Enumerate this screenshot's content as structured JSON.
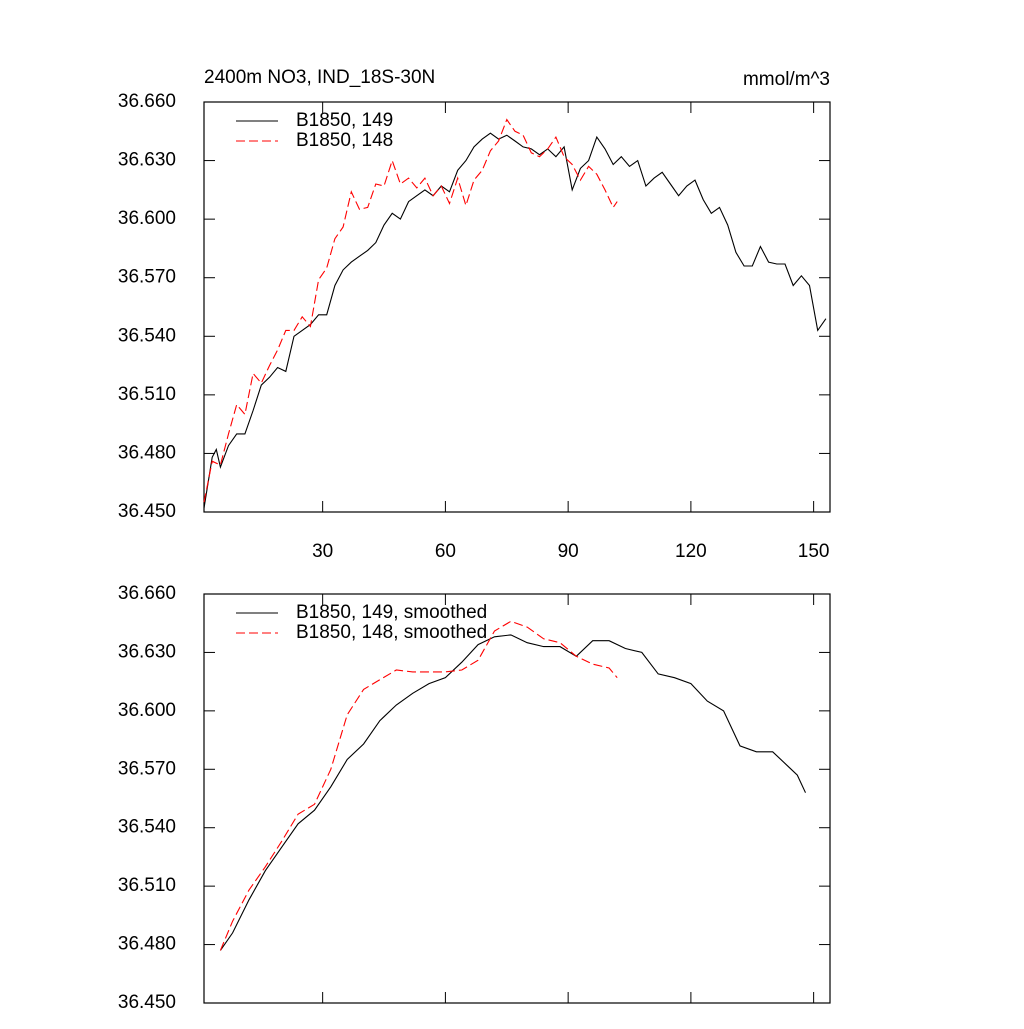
{
  "chart_data": [
    {
      "type": "line",
      "title": "2400m NO3, IND_18S-30N",
      "units": "mmol/m^3",
      "xlim": [
        1,
        154
      ],
      "xticks": [
        30,
        60,
        90,
        120,
        150
      ],
      "ylim": [
        36.45,
        36.66
      ],
      "yticks": [
        {
          "value": 36.45,
          "label": "36.450"
        },
        {
          "value": 36.48,
          "label": "36.480"
        },
        {
          "value": 36.51,
          "label": "36.510"
        },
        {
          "value": 36.54,
          "label": "36.540"
        },
        {
          "value": 36.57,
          "label": "36.570"
        },
        {
          "value": 36.6,
          "label": "36.600"
        },
        {
          "value": 36.63,
          "label": "36.630"
        },
        {
          "value": 36.66,
          "label": "36.660"
        }
      ],
      "series": [
        {
          "name": "B1850, 149",
          "color": "#000000",
          "dash": false,
          "x": [
            1,
            3,
            4,
            5,
            7,
            9,
            11,
            13,
            15,
            17,
            19,
            21,
            23,
            25,
            27,
            29,
            31,
            33,
            35,
            37,
            39,
            41,
            43,
            45,
            47,
            49,
            51,
            53,
            55,
            57,
            59,
            61,
            63,
            65,
            67,
            69,
            71,
            73,
            75,
            77,
            79,
            81,
            83,
            85,
            87,
            89,
            91,
            93,
            95,
            97,
            99,
            101,
            103,
            105,
            107,
            109,
            111,
            113,
            115,
            117,
            119,
            121,
            123,
            125,
            127,
            129,
            131,
            133,
            135,
            137,
            139,
            141,
            143,
            145,
            147,
            149,
            151,
            153
          ],
          "values": [
            36.452,
            36.478,
            36.482,
            36.473,
            36.484,
            36.49,
            36.49,
            36.502,
            36.515,
            36.519,
            36.524,
            36.522,
            36.54,
            36.543,
            36.546,
            36.551,
            36.551,
            36.566,
            36.574,
            36.578,
            36.581,
            36.584,
            36.588,
            36.597,
            36.603,
            36.6,
            36.609,
            36.612,
            36.615,
            36.612,
            36.617,
            36.614,
            36.625,
            36.63,
            36.637,
            36.641,
            36.644,
            36.641,
            36.643,
            36.64,
            36.637,
            36.636,
            36.633,
            36.636,
            36.632,
            36.637,
            36.615,
            36.626,
            36.63,
            36.642,
            36.636,
            36.628,
            36.632,
            36.627,
            36.63,
            36.617,
            36.621,
            36.624,
            36.618,
            36.612,
            36.617,
            36.62,
            36.61,
            36.603,
            36.606,
            36.597,
            36.583,
            36.576,
            36.576,
            36.586,
            36.578,
            36.577,
            36.577,
            36.566,
            36.571,
            36.566,
            36.543,
            36.549
          ]
        },
        {
          "name": "B1850, 148",
          "color": "#ff0000",
          "dash": true,
          "x": [
            1,
            3,
            5,
            7,
            9,
            11,
            13,
            15,
            17,
            19,
            21,
            23,
            25,
            27,
            29,
            31,
            33,
            35,
            37,
            39,
            41,
            43,
            45,
            47,
            49,
            51,
            53,
            55,
            57,
            59,
            61,
            63,
            65,
            67,
            69,
            71,
            73,
            75,
            77,
            79,
            81,
            83,
            85,
            87,
            89,
            91,
            93,
            95,
            97,
            99,
            101,
            102
          ],
          "values": [
            36.455,
            36.476,
            36.474,
            36.49,
            36.505,
            36.5,
            36.521,
            36.516,
            36.525,
            36.533,
            36.543,
            36.543,
            36.55,
            36.545,
            36.569,
            36.575,
            36.59,
            36.596,
            36.614,
            36.605,
            36.606,
            36.618,
            36.617,
            36.63,
            36.618,
            36.621,
            36.616,
            36.621,
            36.612,
            36.617,
            36.608,
            36.621,
            36.607,
            36.62,
            36.625,
            36.635,
            36.64,
            36.651,
            36.645,
            36.643,
            36.634,
            36.632,
            36.636,
            36.642,
            36.632,
            36.628,
            36.62,
            36.627,
            36.623,
            36.615,
            36.606,
            36.609
          ]
        }
      ]
    },
    {
      "type": "line",
      "xtick_labels": false,
      "xlim": [
        1,
        154
      ],
      "xticks": [
        30,
        60,
        90,
        120,
        150
      ],
      "ylim": [
        36.45,
        36.66
      ],
      "yticks": [
        {
          "value": 36.45,
          "label": "36.450"
        },
        {
          "value": 36.48,
          "label": "36.480"
        },
        {
          "value": 36.51,
          "label": "36.510"
        },
        {
          "value": 36.54,
          "label": "36.540"
        },
        {
          "value": 36.57,
          "label": "36.570"
        },
        {
          "value": 36.6,
          "label": "36.600"
        },
        {
          "value": 36.63,
          "label": "36.630"
        },
        {
          "value": 36.66,
          "label": "36.660"
        }
      ],
      "series": [
        {
          "name": "B1850, 149, smoothed",
          "color": "#000000",
          "dash": false,
          "x": [
            5,
            8,
            12,
            16,
            20,
            24,
            28,
            32,
            36,
            40,
            44,
            48,
            52,
            56,
            60,
            64,
            68,
            72,
            76,
            80,
            84,
            88,
            92,
            96,
            100,
            104,
            108,
            112,
            116,
            120,
            124,
            128,
            132,
            136,
            140,
            144,
            146,
            148
          ],
          "values": [
            36.477,
            36.486,
            36.503,
            36.518,
            36.53,
            36.542,
            36.549,
            36.561,
            36.575,
            36.583,
            36.595,
            36.603,
            36.609,
            36.614,
            36.617,
            36.625,
            36.634,
            36.638,
            36.639,
            36.635,
            36.633,
            36.633,
            36.628,
            36.636,
            36.636,
            36.632,
            36.63,
            36.619,
            36.617,
            36.614,
            36.605,
            36.6,
            36.582,
            36.579,
            36.579,
            36.571,
            36.567,
            36.558
          ]
        },
        {
          "name": "B1850, 148, smoothed",
          "color": "#ff0000",
          "dash": true,
          "x": [
            5,
            8,
            12,
            16,
            20,
            24,
            28,
            32,
            36,
            40,
            44,
            48,
            52,
            56,
            60,
            64,
            68,
            72,
            76,
            80,
            84,
            88,
            92,
            96,
            100,
            102
          ],
          "values": [
            36.477,
            36.492,
            36.508,
            36.52,
            36.533,
            36.547,
            36.552,
            36.57,
            36.598,
            36.611,
            36.616,
            36.621,
            36.62,
            36.62,
            36.62,
            36.621,
            36.626,
            36.641,
            36.646,
            36.643,
            36.637,
            36.635,
            36.628,
            36.624,
            36.622,
            36.617
          ]
        }
      ]
    }
  ]
}
